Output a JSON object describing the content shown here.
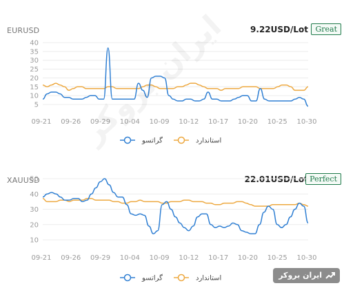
{
  "watermark_text": "ایران بروکر",
  "logo": {
    "text": "ایران بروکر",
    "icon": "chart-up-icon"
  },
  "colors": {
    "series_a": "#2f7fd3",
    "series_b": "#eda83f",
    "grid": "#ececec",
    "badge": "#1e7a4a"
  },
  "charts": [
    {
      "symbol": "EURUSD",
      "price": "9.22USD/Lot",
      "badge": "Great",
      "legend": [
        "گراتسو",
        "استاندارد"
      ]
    },
    {
      "symbol": "XAUUSD",
      "price": "22.01USD/Lot",
      "badge": "Perfect",
      "legend": [
        "گراتسو",
        "استاندارد"
      ]
    }
  ],
  "chart_data": [
    {
      "type": "line",
      "x_labels": [
        "09-21",
        "09-26",
        "09-29",
        "10-04",
        "10-09",
        "10-12",
        "10-17",
        "10-20",
        "10-25",
        "10-30"
      ],
      "yticks": [
        5,
        10,
        15,
        20,
        25,
        30,
        35,
        40
      ],
      "ylim": [
        5,
        40
      ],
      "grid": true,
      "legend_position": "bottom",
      "series": [
        {
          "name": "گراتسو",
          "color": "#2f7fd3",
          "values": [
            8,
            11,
            12,
            12,
            11,
            9,
            9,
            8,
            8,
            8,
            9,
            10,
            10,
            8,
            8,
            37,
            8,
            8,
            8,
            8,
            8,
            8,
            17,
            13,
            9,
            20,
            21,
            21,
            20,
            10,
            8,
            7,
            7,
            8,
            8,
            7,
            7,
            8,
            12,
            8,
            8,
            7,
            7,
            7,
            8,
            9,
            10,
            10,
            7,
            7,
            14,
            8,
            7,
            7,
            7,
            7,
            7,
            7,
            8,
            9,
            8,
            4
          ]
        },
        {
          "name": "استاندارد",
          "color": "#eda83f",
          "values": [
            16,
            15,
            16,
            17,
            16,
            15,
            13,
            14,
            15,
            15,
            14,
            14,
            14,
            14,
            14,
            15,
            15,
            14,
            14,
            14,
            14,
            14,
            14,
            15,
            16,
            16,
            15,
            14,
            14,
            14,
            14,
            15,
            15,
            16,
            17,
            17,
            16,
            15,
            14,
            14,
            14,
            13,
            14,
            14,
            14,
            14,
            15,
            15,
            15,
            15,
            14,
            14,
            14,
            14,
            15,
            16,
            16,
            15,
            13,
            13,
            13,
            15
          ]
        }
      ]
    },
    {
      "type": "line",
      "x_labels": [
        "09-21",
        "09-26",
        "09-29",
        "10-04",
        "10-09",
        "10-12",
        "10-17",
        "10-20",
        "10-25",
        "10-30"
      ],
      "yticks": [
        10,
        20,
        30,
        40,
        50
      ],
      "ylim": [
        10,
        50
      ],
      "grid": true,
      "legend_position": "bottom",
      "series": [
        {
          "name": "گراتسو",
          "color": "#2f7fd3",
          "values": [
            38,
            40,
            41,
            40,
            38,
            36,
            36,
            37,
            37,
            35,
            36,
            40,
            44,
            48,
            50,
            46,
            41,
            38,
            38,
            33,
            27,
            26,
            27,
            26,
            19,
            14,
            16,
            33,
            35,
            30,
            25,
            21,
            18,
            16,
            19,
            25,
            27,
            27,
            20,
            18,
            19,
            18,
            19,
            21,
            20,
            16,
            15,
            14,
            14,
            20,
            28,
            32,
            30,
            20,
            18,
            20,
            25,
            30,
            34,
            32,
            21
          ]
        },
        {
          "name": "استاندارد",
          "color": "#eda83f",
          "values": [
            37,
            35,
            35,
            35,
            36,
            36,
            35,
            36,
            36,
            36,
            37,
            37,
            36,
            36,
            36,
            36,
            35,
            35,
            34,
            34,
            35,
            35,
            36,
            35,
            35,
            35,
            35,
            34,
            34,
            35,
            35,
            35,
            36,
            36,
            35,
            35,
            35,
            34,
            34,
            33,
            33,
            34,
            34,
            34,
            35,
            35,
            34,
            33,
            32,
            32,
            32,
            32,
            33,
            33,
            33,
            33,
            33,
            33,
            34,
            33,
            32
          ]
        }
      ]
    }
  ]
}
